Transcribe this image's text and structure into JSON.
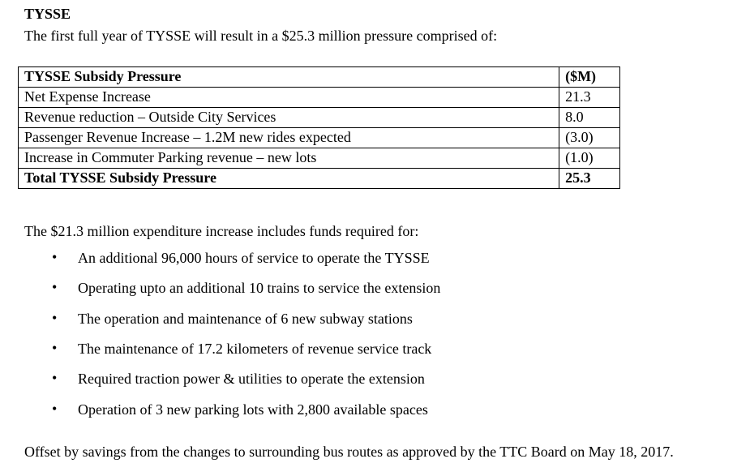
{
  "document": {
    "title": "TYSSE",
    "intro": "The first full year of TYSSE will result in a $25.3 million pressure comprised of:",
    "table": {
      "header": {
        "label": "TYSSE Subsidy Pressure",
        "value": "($M)"
      },
      "rows": [
        {
          "label": "Net Expense Increase",
          "value": "21.3"
        },
        {
          "label": "Revenue reduction – Outside City Services",
          "value": "8.0"
        },
        {
          "label": "Passenger Revenue Increase – 1.2M new rides expected",
          "value": "(3.0)"
        },
        {
          "label": "Increase in Commuter Parking revenue – new lots",
          "value": "(1.0)"
        }
      ],
      "total": {
        "label": "Total TYSSE Subsidy Pressure",
        "value": "25.3"
      }
    },
    "expenditure_intro": "The $21.3 million expenditure increase includes funds required for:",
    "bullet_glyph": "•",
    "bullets": [
      "An additional 96,000 hours of service to operate the TYSSE",
      "Operating upto an additional 10 trains to service the extension",
      "The operation and maintenance of 6 new subway stations",
      "The maintenance of 17.2 kilometers of revenue service track",
      "Required traction power & utilities to operate the extension",
      "Operation of 3 new parking lots with 2,800 available spaces"
    ],
    "closing": "Offset by savings from the changes to surrounding bus routes as approved by the TTC Board on May 18, 2017."
  }
}
